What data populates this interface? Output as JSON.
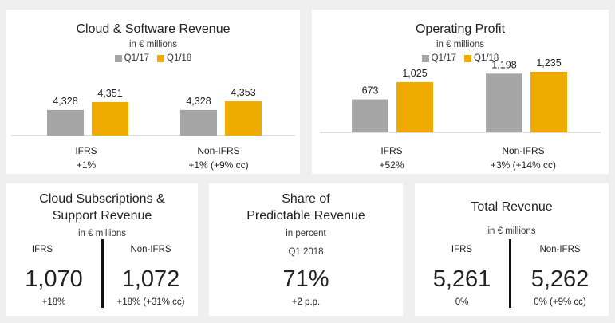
{
  "colors": {
    "q1_17": "#a6a6a6",
    "q1_18": "#f0ab00"
  },
  "chart_data": [
    {
      "type": "bar",
      "title": "Cloud & Software Revenue",
      "subtitle": "in € millions",
      "categories": [
        "IFRS",
        "Non-IFRS"
      ],
      "series": [
        {
          "name": "Q1/17",
          "values": [
            4328,
            4328
          ]
        },
        {
          "name": "Q1/18",
          "values": [
            4351,
            4353
          ]
        }
      ],
      "value_labels": [
        [
          "4,328",
          "4,328"
        ],
        [
          "4,351",
          "4,353"
        ]
      ],
      "changes": [
        "+1%",
        "+1% (+9% cc)"
      ],
      "legend": "top-center"
    },
    {
      "type": "bar",
      "title": "Operating Profit",
      "subtitle": "in € millions",
      "categories": [
        "IFRS",
        "Non-IFRS"
      ],
      "series": [
        {
          "name": "Q1/17",
          "values": [
            673,
            1198
          ]
        },
        {
          "name": "Q1/18",
          "values": [
            1025,
            1235
          ]
        }
      ],
      "value_labels": [
        [
          "673",
          "1,198"
        ],
        [
          "1,025",
          "1,235"
        ]
      ],
      "changes": [
        "+52%",
        "+3% (+14% cc)"
      ],
      "legend": "top-center"
    }
  ],
  "kpis": {
    "cloud_subs": {
      "title_line1": "Cloud Subscriptions &",
      "title_line2": "Support Revenue",
      "unit": "in € millions",
      "left": {
        "head": "IFRS",
        "value": "1,070",
        "change": "+18%"
      },
      "right": {
        "head": "Non-IFRS",
        "value": "1,072",
        "change": "+18% (+31% cc)"
      }
    },
    "predictable": {
      "title_line1": "Share of",
      "title_line2": "Predictable Revenue",
      "unit": "in percent",
      "period": "Q1 2018",
      "value": "71%",
      "change": "+2 p.p."
    },
    "total_revenue": {
      "title": "Total Revenue",
      "unit": "in € millions",
      "left": {
        "head": "IFRS",
        "value": "5,261",
        "change": "0%"
      },
      "right": {
        "head": "Non-IFRS",
        "value": "5,262",
        "change": "0% (+9% cc)"
      }
    }
  }
}
